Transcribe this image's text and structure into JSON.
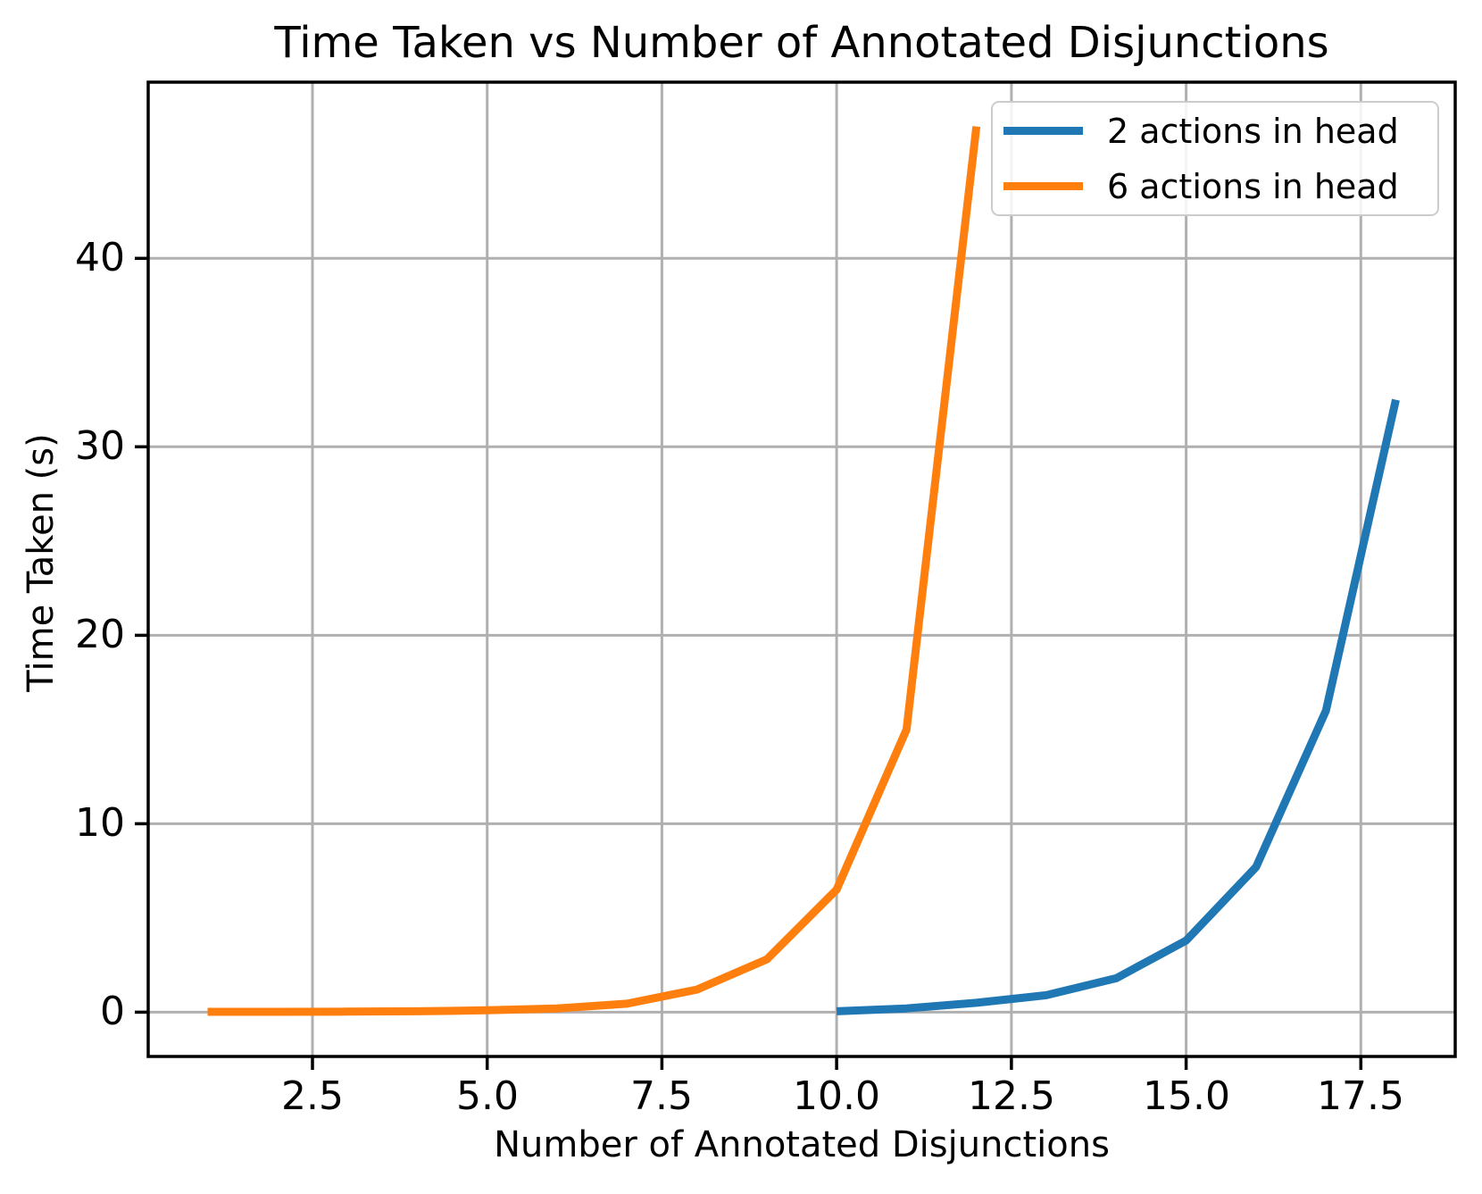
{
  "chart_data": {
    "type": "line",
    "title": "Time Taken vs Number of Annotated Disjunctions",
    "xlabel": "Number of Annotated Disjunctions",
    "ylabel": "Time Taken (s)",
    "xlim": [
      0.15,
      18.85
    ],
    "ylim": [
      -2.35,
      49.35
    ],
    "xticks": {
      "values": [
        2.5,
        5.0,
        7.5,
        10.0,
        12.5,
        15.0,
        17.5
      ],
      "labels": [
        "2.5",
        "5.0",
        "7.5",
        "10.0",
        "12.5",
        "15.0",
        "17.5"
      ]
    },
    "yticks": {
      "values": [
        0,
        10,
        20,
        30,
        40
      ],
      "labels": [
        "0",
        "10",
        "20",
        "30",
        "40"
      ]
    },
    "grid": true,
    "grid_color": "#b0b0b0",
    "spine_color": "#000000",
    "background_color": "#ffffff",
    "line_width": 9,
    "legend_position": "upper right",
    "series": [
      {
        "name": "2 actions in head",
        "color": "#1f77b4",
        "x": [
          10,
          11,
          12,
          13,
          14,
          15,
          16,
          17,
          18
        ],
        "y": [
          0.05,
          0.2,
          0.5,
          0.9,
          1.8,
          3.8,
          7.7,
          16.0,
          32.5
        ]
      },
      {
        "name": "6 actions in head",
        "color": "#ff7f0e",
        "x": [
          1,
          2,
          3,
          4,
          5,
          6,
          7,
          8,
          9,
          10,
          11,
          12
        ],
        "y": [
          0.02,
          0.02,
          0.03,
          0.05,
          0.1,
          0.2,
          0.45,
          1.2,
          2.8,
          6.5,
          15.0,
          47.0
        ]
      }
    ]
  }
}
